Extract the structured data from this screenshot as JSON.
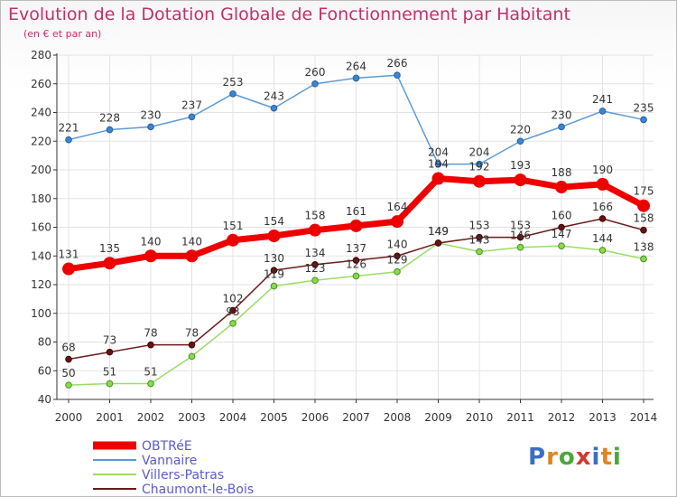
{
  "title": "Evolution de la Dotation Globale de Fonctionnement par Habitant",
  "subtitle": "(en € et par an)",
  "logo": {
    "text": "Proxiti",
    "letters": [
      "P",
      "r",
      "o",
      "x",
      "i",
      "t",
      "i"
    ],
    "colors": [
      "#3a6fc2",
      "#e0841f",
      "#4aa83a",
      "#d23a2c",
      "#3a6fc2",
      "#e0841f",
      "#4aa83a"
    ]
  },
  "chart_data": {
    "type": "line",
    "title": "Evolution de la Dotation Globale de Fonctionnement par Habitant",
    "subtitle": "(en € et par an)",
    "xlabel": "",
    "ylabel": "",
    "ylim": [
      40,
      280
    ],
    "yticks": [
      40,
      60,
      80,
      100,
      120,
      140,
      160,
      180,
      200,
      220,
      240,
      260,
      280
    ],
    "categories": [
      "2000",
      "2001",
      "2002",
      "2003",
      "2004",
      "2005",
      "2006",
      "2007",
      "2008",
      "2009",
      "2010",
      "2011",
      "2012",
      "2013",
      "2014"
    ],
    "grid": true,
    "legend_position": "bottom-left",
    "series": [
      {
        "name": "OBTRéE",
        "color": "#ee0000",
        "values": [
          131,
          135,
          140,
          140,
          151,
          154,
          158,
          161,
          164,
          194,
          192,
          193,
          188,
          190,
          175
        ]
      },
      {
        "name": "Vannaire",
        "color": "#5b9bd5",
        "values": [
          221,
          228,
          230,
          237,
          253,
          243,
          260,
          264,
          266,
          204,
          204,
          220,
          230,
          241,
          235
        ]
      },
      {
        "name": "Villers-Patras",
        "color": "#99dd66",
        "values": [
          50,
          51,
          51,
          70,
          93,
          119,
          123,
          126,
          129,
          149,
          143,
          146,
          147,
          144,
          138
        ]
      },
      {
        "name": "Chaumont-le-Bois",
        "color": "#6b1a1a",
        "values": [
          68,
          73,
          78,
          78,
          102,
          130,
          134,
          137,
          140,
          149,
          153,
          153,
          160,
          166,
          158
        ]
      }
    ],
    "labels": {
      "OBTRéE": [
        "131",
        "135",
        "140",
        "140",
        "151",
        "154",
        "158",
        "161",
        "164",
        "194",
        "192",
        "193",
        "188",
        "190",
        "175"
      ],
      "Vannaire": [
        "221",
        "228",
        "230",
        "237",
        "253",
        "243",
        "260",
        "264",
        "266",
        "204",
        "204",
        "220",
        "230",
        "241",
        "235"
      ],
      "Villers-Patras": [
        "50",
        "51",
        "51",
        "",
        "93",
        "119",
        "123",
        "126",
        "129",
        "149",
        "143",
        "146",
        "147",
        "144",
        "138"
      ],
      "Chaumont-le-Bois": [
        "68",
        "73",
        "78",
        "78",
        "102",
        "130",
        "134",
        "137",
        "140",
        "149",
        "153",
        "153",
        "160",
        "166",
        "158"
      ]
    }
  }
}
